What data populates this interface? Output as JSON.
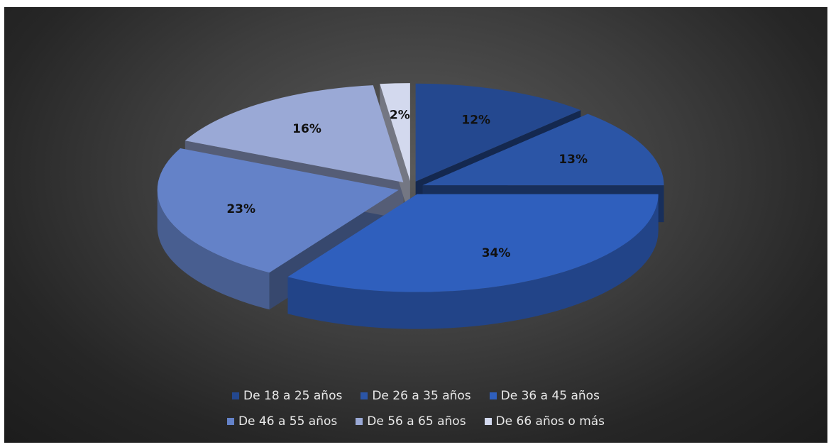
{
  "chart_data": {
    "type": "pie",
    "title": "",
    "categories": [
      "De 18 a 25 años",
      "De 26 a 35 años",
      "De 36 a 45 años",
      "De 46 a 55 años",
      "De 56 a 65 años",
      "De 66 años o más"
    ],
    "values": [
      12,
      13,
      34,
      23,
      16,
      2
    ],
    "labels": [
      "12%",
      "13%",
      "34%",
      "23%",
      "16%",
      "2%"
    ],
    "colors": [
      "#24488f",
      "#2b55a6",
      "#2f5fbd",
      "#6482c8",
      "#9aa9d6",
      "#d3d9ee"
    ],
    "style": "3d-exploded",
    "legend_position": "bottom"
  }
}
